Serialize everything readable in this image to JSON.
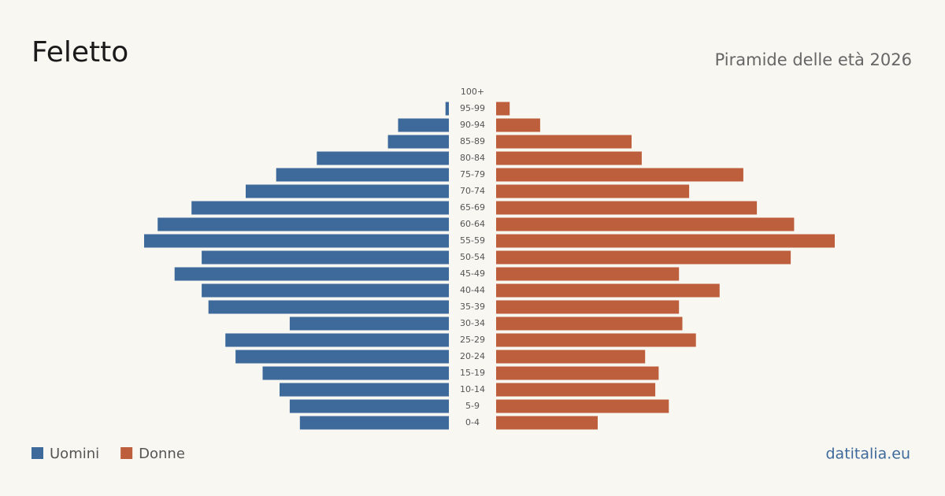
{
  "chart_data": {
    "type": "pyramid",
    "title": "Feletto",
    "subtitle": "Piramide delle età 2026",
    "categories": [
      "100+",
      "95-99",
      "90-94",
      "85-89",
      "80-84",
      "75-79",
      "70-74",
      "65-69",
      "60-64",
      "55-59",
      "50-54",
      "45-49",
      "40-44",
      "35-39",
      "30-34",
      "25-29",
      "20-24",
      "15-19",
      "10-14",
      "5-9",
      "0-4"
    ],
    "series": [
      {
        "name": "Uomini",
        "color": "#3d6a9b",
        "values": [
          0,
          1,
          15,
          18,
          39,
          51,
          60,
          76,
          86,
          90,
          73,
          81,
          73,
          71,
          47,
          66,
          63,
          55,
          50,
          47,
          44
        ]
      },
      {
        "name": "Donne",
        "color": "#bd5e3c",
        "values": [
          0,
          4,
          13,
          40,
          43,
          73,
          57,
          77,
          88,
          100,
          87,
          54,
          66,
          54,
          55,
          59,
          44,
          48,
          47,
          51,
          30
        ]
      }
    ],
    "source": "datitalia.eu"
  }
}
